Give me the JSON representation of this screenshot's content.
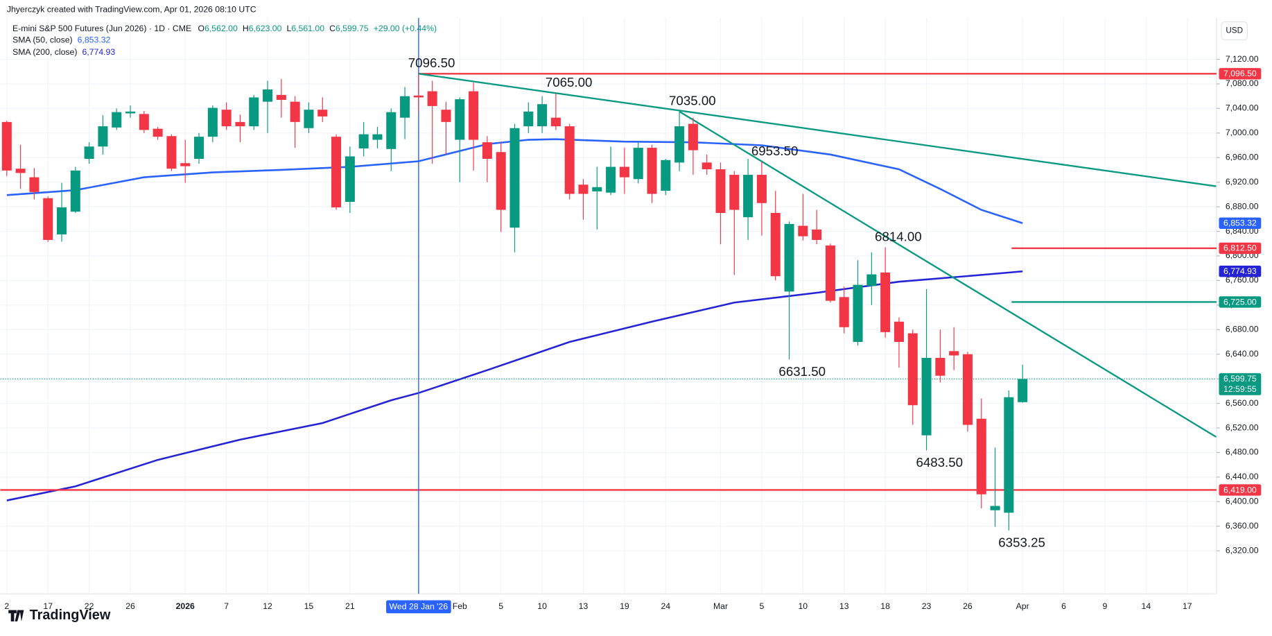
{
  "chart_data": {
    "type": "candlestick",
    "title": "E-mini S&P 500 Futures (Jun 2026) · 1D · CME",
    "credit": "Jhyerczyk created with TradingView.com, Apr 01, 2026 08:10 UTC",
    "brand": "TradingView",
    "currency": "USD",
    "ohlc_legend": [
      {
        "key": "O",
        "label": "6,562.00"
      },
      {
        "key": "H",
        "label": "6,623.00"
      },
      {
        "key": "L",
        "label": "6,561.00"
      },
      {
        "key": "C",
        "label": "6,599.75"
      },
      {
        "key": "",
        "label": "+29.00 (+0.44%)"
      }
    ],
    "up_color": "#089981",
    "down_color": "#f23645",
    "candles": {
      "open": [
        7018,
        6942,
        6928,
        6894,
        6835,
        6872,
        6958,
        6978,
        7009,
        7032,
        7031,
        7007,
        6995,
        6951,
        6958,
        6994,
        7038,
        7018,
        7011,
        7051,
        7062,
        7051,
        7008,
        7038,
        6994,
        6888,
        6975,
        6989,
        6974,
        7025,
        7061,
        7068,
        7038,
        6989,
        7068,
        6985,
        6969,
        6846,
        7011,
        7011,
        7025,
        7011,
        6916,
        6905,
        6903,
        6945,
        6925,
        6976,
        6906,
        6952,
        7015,
        6952,
        6941,
        6932,
        6863,
        6932,
        6870,
        6742,
        6849,
        6843,
        6817,
        6733,
        6660,
        6751,
        6773,
        6693,
        6674,
        6508,
        6634,
        6645,
        6640,
        6535,
        6386,
        6382,
        6562
      ],
      "high": [
        7020,
        6981,
        6943,
        6897,
        6919,
        6945,
        6985,
        7029,
        7040,
        7045,
        7036,
        7010,
        6998,
        6989,
        7000,
        7045,
        7050,
        7030,
        7062,
        7085,
        7088,
        7060,
        7050,
        7058,
        6998,
        6978,
        7018,
        7010,
        7040,
        7075,
        7096.5,
        7085,
        7051,
        7058,
        7082,
        6995,
        6985,
        7015,
        7050,
        7060,
        7065,
        7015,
        6925,
        6945,
        6978,
        6976,
        6985,
        6981,
        6958,
        7035,
        7025,
        6965,
        6952,
        6938,
        6958,
        6953.5,
        6906,
        6856,
        6901,
        6875,
        6820,
        6750,
        6793,
        6806,
        6814,
        6700,
        6680,
        6746,
        6680,
        6684,
        6644,
        6568,
        6488,
        6581,
        6623
      ],
      "low": [
        6930,
        6909,
        6892,
        6823,
        6823,
        6870,
        6950,
        6965,
        7005,
        7025,
        7000,
        6989,
        6938,
        6919,
        6950,
        6985,
        7005,
        6985,
        7005,
        7000,
        7025,
        6976,
        7000,
        7018,
        6875,
        6870,
        6962,
        6975,
        6938,
        6990,
        7035,
        6950,
        6965,
        6920,
        6939,
        6920,
        6839,
        6806,
        7000,
        7000,
        7005,
        6892,
        6859,
        6843,
        6899,
        6901,
        6918,
        6886,
        6899,
        6938,
        6932,
        6932,
        6819,
        6769,
        6826,
        6833,
        6760,
        6631.5,
        6825,
        6819,
        6724,
        6674,
        6654,
        6720,
        6667,
        6618,
        6525,
        6483.5,
        6594,
        6614,
        6514,
        6389,
        6359,
        6353.25,
        6561
      ],
      "close": [
        6939,
        6935,
        6904,
        6826,
        6879,
        6939,
        6978,
        7011,
        7034,
        7035,
        7005,
        6994,
        6942,
        6946,
        6994,
        7041,
        7011,
        7011,
        7058,
        7071,
        7054,
        7018,
        7038,
        7027,
        6879,
        6962,
        6998,
        6998,
        7034,
        7060,
        7058,
        7044,
        7018,
        7055,
        6989,
        6958,
        6875,
        7008,
        7035,
        7047,
        7011,
        6901,
        6901,
        6912,
        6945,
        6928,
        6976,
        6901,
        6956,
        7011,
        6972,
        6941,
        6870,
        6875,
        6932,
        6886,
        6767,
        6852,
        6832,
        6826,
        6727,
        6684,
        6753,
        6770,
        6676,
        6660,
        6557,
        6634,
        6605,
        6638,
        6525,
        6412,
        6393,
        6570,
        6599.75
      ]
    },
    "series": [
      {
        "name": "SMA (50, close)",
        "color": "#2962ff",
        "value_label": "6,853.32",
        "x": [
          0,
          5,
          10,
          15,
          20,
          25,
          30,
          35,
          38,
          40,
          45,
          50,
          55,
          60,
          65,
          68,
          71,
          74
        ],
        "values": [
          6899,
          6907,
          6928,
          6936,
          6940,
          6945,
          6954,
          6982,
          6989,
          6990,
          6986,
          6985,
          6980,
          6965,
          6941,
          6909,
          6875,
          6853.32
        ]
      },
      {
        "name": "SMA (200, close)",
        "color": "#2424d6",
        "value_label": "6,774.93",
        "x": [
          0,
          5,
          11,
          17,
          23,
          28,
          30,
          35,
          41,
          47,
          53,
          59,
          65,
          71,
          74
        ],
        "values": [
          6402,
          6425,
          6468,
          6501,
          6528,
          6565,
          6577,
          6614,
          6660,
          6693,
          6724,
          6740,
          6758,
          6769,
          6774.93
        ]
      }
    ],
    "last_price": {
      "value": 6599.75,
      "label": "6,599.75",
      "countdown": "12:59:55",
      "color": "#089981"
    },
    "levels": [
      {
        "value": 7096.5,
        "label": "7,096.50",
        "color": "#f23645",
        "from": 30
      },
      {
        "value": 6812.5,
        "label": "6,812.50",
        "color": "#f23645",
        "from": 73.2
      },
      {
        "value": 6725,
        "label": "6,725.00",
        "color": "#089981",
        "from": 73.2
      },
      {
        "value": 6419,
        "label": "6,419.00",
        "color": "#f23645"
      }
    ],
    "trendlines": [
      {
        "color": "#089981",
        "x": [
          30,
          88.1
        ],
        "y": [
          7096.5,
          6913.4
        ]
      },
      {
        "color": "#089981",
        "x": [
          49,
          88.1
        ],
        "y": [
          7035,
          6505.4
        ]
      }
    ],
    "annotations": [
      {
        "label": "7096.50",
        "x": 30,
        "value": 7096.5
      },
      {
        "label": "7065.00",
        "x": 40,
        "value": 7065
      },
      {
        "label": "7035.00",
        "x": 49,
        "value": 7035
      },
      {
        "label": "6953.50",
        "x": 55,
        "value": 6953.5
      },
      {
        "label": "6814.00",
        "x": 64,
        "value": 6814
      },
      {
        "label": "6631.50",
        "x": 57,
        "value": 6631.5
      },
      {
        "label": "6483.50",
        "x": 67,
        "value": 6483.5
      },
      {
        "label": "6353.25",
        "x": 73,
        "value": 6353.25
      }
    ],
    "crosshair": {
      "x": 30,
      "label": "Wed 28 Jan '26",
      "color": "#2962ff"
    },
    "xlim": [
      -0.47,
      88.13
    ],
    "ylim": [
      6250,
      7187.5
    ],
    "xticks": [
      {
        "value": 0,
        "label": "2"
      },
      {
        "value": 3,
        "label": "17"
      },
      {
        "value": 6,
        "label": "22"
      },
      {
        "value": 9,
        "label": "26"
      },
      {
        "value": 13,
        "label": "2026"
      },
      {
        "value": 16,
        "label": "7"
      },
      {
        "value": 19,
        "label": "12"
      },
      {
        "value": 22,
        "label": "15"
      },
      {
        "value": 25,
        "label": "21"
      },
      {
        "value": 33,
        "label": "Feb"
      },
      {
        "value": 36,
        "label": "5"
      },
      {
        "value": 39,
        "label": "10"
      },
      {
        "value": 42,
        "label": "13"
      },
      {
        "value": 45,
        "label": "19"
      },
      {
        "value": 48,
        "label": "24"
      },
      {
        "value": 52,
        "label": "Mar"
      },
      {
        "value": 55,
        "label": "5"
      },
      {
        "value": 58,
        "label": "10"
      },
      {
        "value": 61,
        "label": "13"
      },
      {
        "value": 64,
        "label": "18"
      },
      {
        "value": 67,
        "label": "23"
      },
      {
        "value": 70,
        "label": "26"
      },
      {
        "value": 74,
        "label": "Apr"
      },
      {
        "value": 77,
        "label": "6"
      },
      {
        "value": 80,
        "label": "9"
      },
      {
        "value": 83,
        "label": "14"
      },
      {
        "value": 86,
        "label": "17"
      }
    ],
    "yticks": [
      {
        "value": 6320,
        "label": "6,320.00"
      },
      {
        "value": 6360,
        "label": "6,360.00"
      },
      {
        "value": 6400,
        "label": "6,400.00"
      },
      {
        "value": 6440,
        "label": "6,440.00"
      },
      {
        "value": 6480,
        "label": "6,480.00"
      },
      {
        "value": 6520,
        "label": "6,520.00"
      },
      {
        "value": 6560,
        "label": "6,560.00"
      },
      {
        "value": 6600,
        "label": "6,600.00"
      },
      {
        "value": 6640,
        "label": "6,640.00"
      },
      {
        "value": 6680,
        "label": "6,680.00"
      },
      {
        "value": 6720,
        "label": "6,720.00"
      },
      {
        "value": 6760,
        "label": "6,760.00"
      },
      {
        "value": 6800,
        "label": "6,800.00"
      },
      {
        "value": 6840,
        "label": "6,840.00"
      },
      {
        "value": 6880,
        "label": "6,880.00"
      },
      {
        "value": 6920,
        "label": "6,920.00"
      },
      {
        "value": 6960,
        "label": "6,960.00"
      },
      {
        "value": 7000,
        "label": "7,000.00"
      },
      {
        "value": 7040,
        "label": "7,040.00"
      },
      {
        "value": 7080,
        "label": "7,080.00"
      },
      {
        "value": 7120,
        "label": "7,120.00"
      }
    ],
    "grid": true
  }
}
